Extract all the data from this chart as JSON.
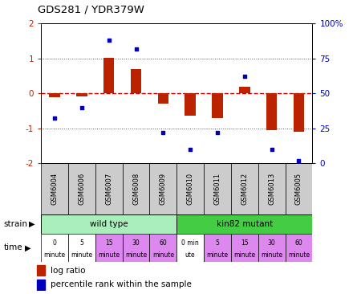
{
  "title": "GDS281 / YDR379W",
  "samples": [
    "GSM6004",
    "GSM6006",
    "GSM6007",
    "GSM6008",
    "GSM6009",
    "GSM6010",
    "GSM6011",
    "GSM6012",
    "GSM6013",
    "GSM6005"
  ],
  "log_ratio": [
    -0.12,
    -0.08,
    1.02,
    0.7,
    -0.3,
    -0.65,
    -0.72,
    0.18,
    -1.05,
    -1.1
  ],
  "percentile": [
    32,
    40,
    88,
    82,
    22,
    10,
    22,
    62,
    10,
    2
  ],
  "ylim": [
    -2.0,
    2.0
  ],
  "yticks_left": [
    -2,
    -1,
    0,
    1,
    2
  ],
  "yticks_right": [
    0,
    25,
    50,
    75,
    100
  ],
  "bar_color": "#bb2200",
  "dot_color": "#0000bb",
  "strain_wild": "wild type",
  "strain_mutant": "kin82 mutant",
  "strain_color_wild": "#aaeebb",
  "strain_color_mutant": "#44cc44",
  "time_labels": [
    [
      "0",
      "minute"
    ],
    [
      "5",
      "minute"
    ],
    [
      "15",
      "minute"
    ],
    [
      "30",
      "minute"
    ],
    [
      "60",
      "minute"
    ],
    [
      "0 min",
      "ute"
    ],
    [
      "5",
      "minute"
    ],
    [
      "15",
      "minute"
    ],
    [
      "30",
      "minute"
    ],
    [
      "60",
      "minute"
    ]
  ],
  "time_colors": [
    "#ffffff",
    "#ffffff",
    "#dd88ee",
    "#dd88ee",
    "#dd88ee",
    "#ffffff",
    "#dd88ee",
    "#dd88ee",
    "#dd88ee",
    "#dd88ee"
  ],
  "zero_line_color": "#cc0000",
  "dot_line_color": "#555555",
  "bg": "#ffffff",
  "sample_bg": "#cccccc",
  "bar_width": 0.4
}
